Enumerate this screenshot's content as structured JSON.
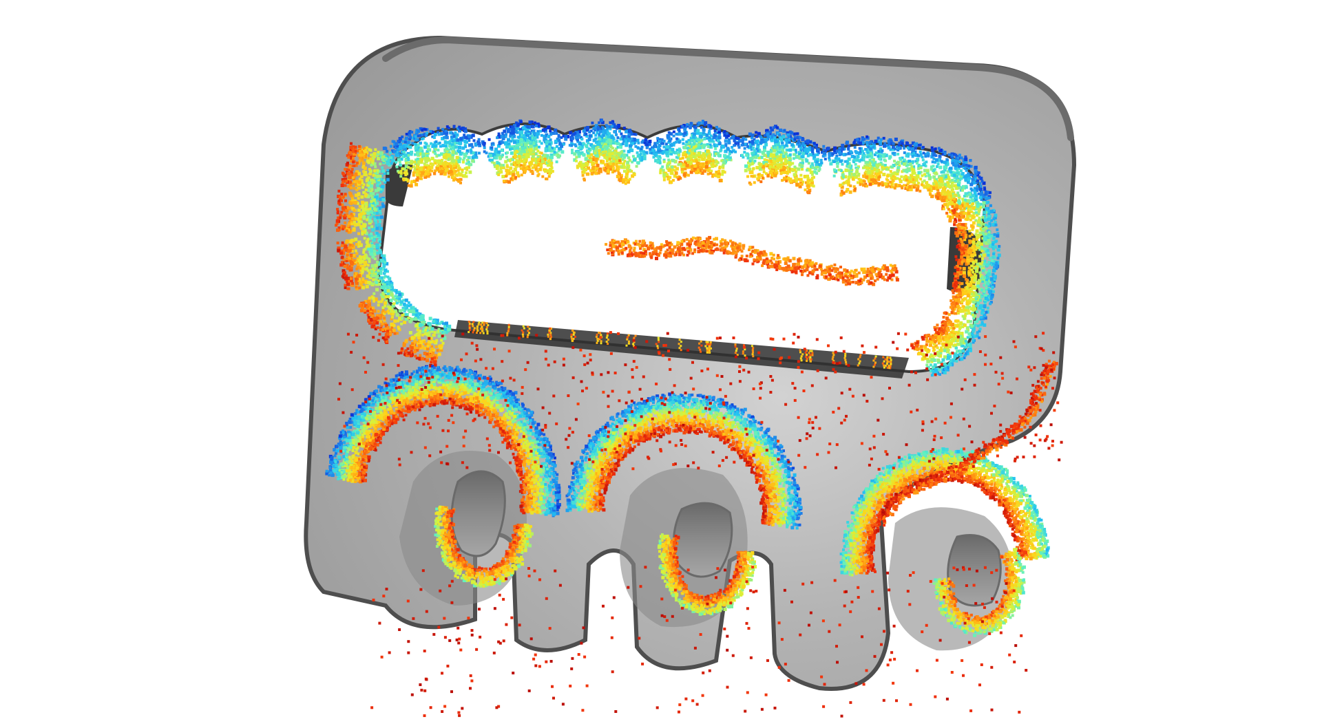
{
  "scene": {
    "background": "#ffffff",
    "part_color": "#a9a9a9",
    "part_edge_color": "#5a5a5a",
    "colormap": "jet",
    "colormap_stops": [
      "#0a2fd6",
      "#1e7be8",
      "#23c3f2",
      "#5ef0c4",
      "#d8f23a",
      "#ffd21a",
      "#ff8a12",
      "#f0300c",
      "#b80d08"
    ],
    "objects": [
      {
        "name": "gray-3d-part"
      },
      {
        "name": "upper-window-point-cloud"
      },
      {
        "name": "lower-left-hook-point-cloud"
      },
      {
        "name": "lower-middle-hook-point-cloud"
      },
      {
        "name": "lower-right-hook-point-cloud"
      },
      {
        "name": "scattered-outlier-points"
      }
    ]
  }
}
